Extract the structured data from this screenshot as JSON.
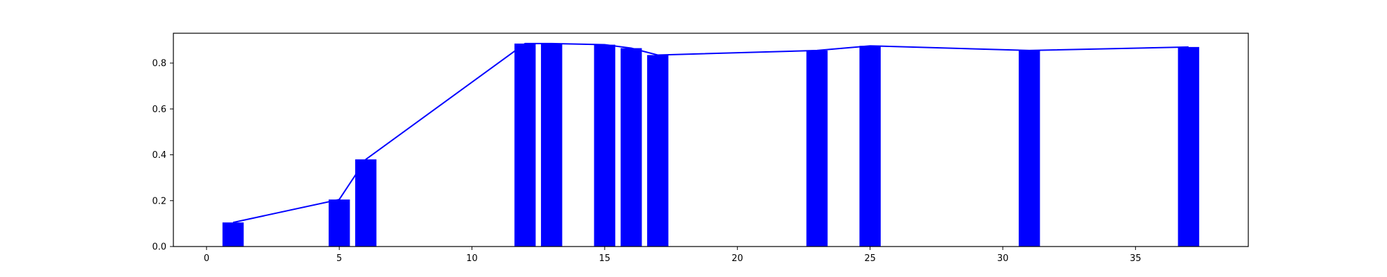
{
  "chart_data": {
    "type": "bar",
    "title": "",
    "xlabel": "",
    "ylabel": "",
    "xlim": [
      -1.25,
      39.25
    ],
    "ylim": [
      0.0,
      0.93
    ],
    "x_ticks": [
      0,
      5,
      10,
      15,
      20,
      25,
      30,
      35
    ],
    "y_ticks": [
      0.0,
      0.2,
      0.4,
      0.6,
      0.8
    ],
    "y_tick_labels": [
      "0.0",
      "0.2",
      "0.4",
      "0.6",
      "0.8"
    ],
    "grid": false,
    "legend": "none",
    "bar_width": 0.8,
    "colors": {
      "bars": "#0000ff",
      "line": "#0000ff",
      "axes": "#000000"
    },
    "x": [
      1,
      5,
      6,
      12,
      13,
      15,
      16,
      17,
      23,
      25,
      31,
      37
    ],
    "values": [
      0.105,
      0.205,
      0.38,
      0.885,
      0.885,
      0.88,
      0.865,
      0.835,
      0.855,
      0.875,
      0.855,
      0.87
    ]
  }
}
